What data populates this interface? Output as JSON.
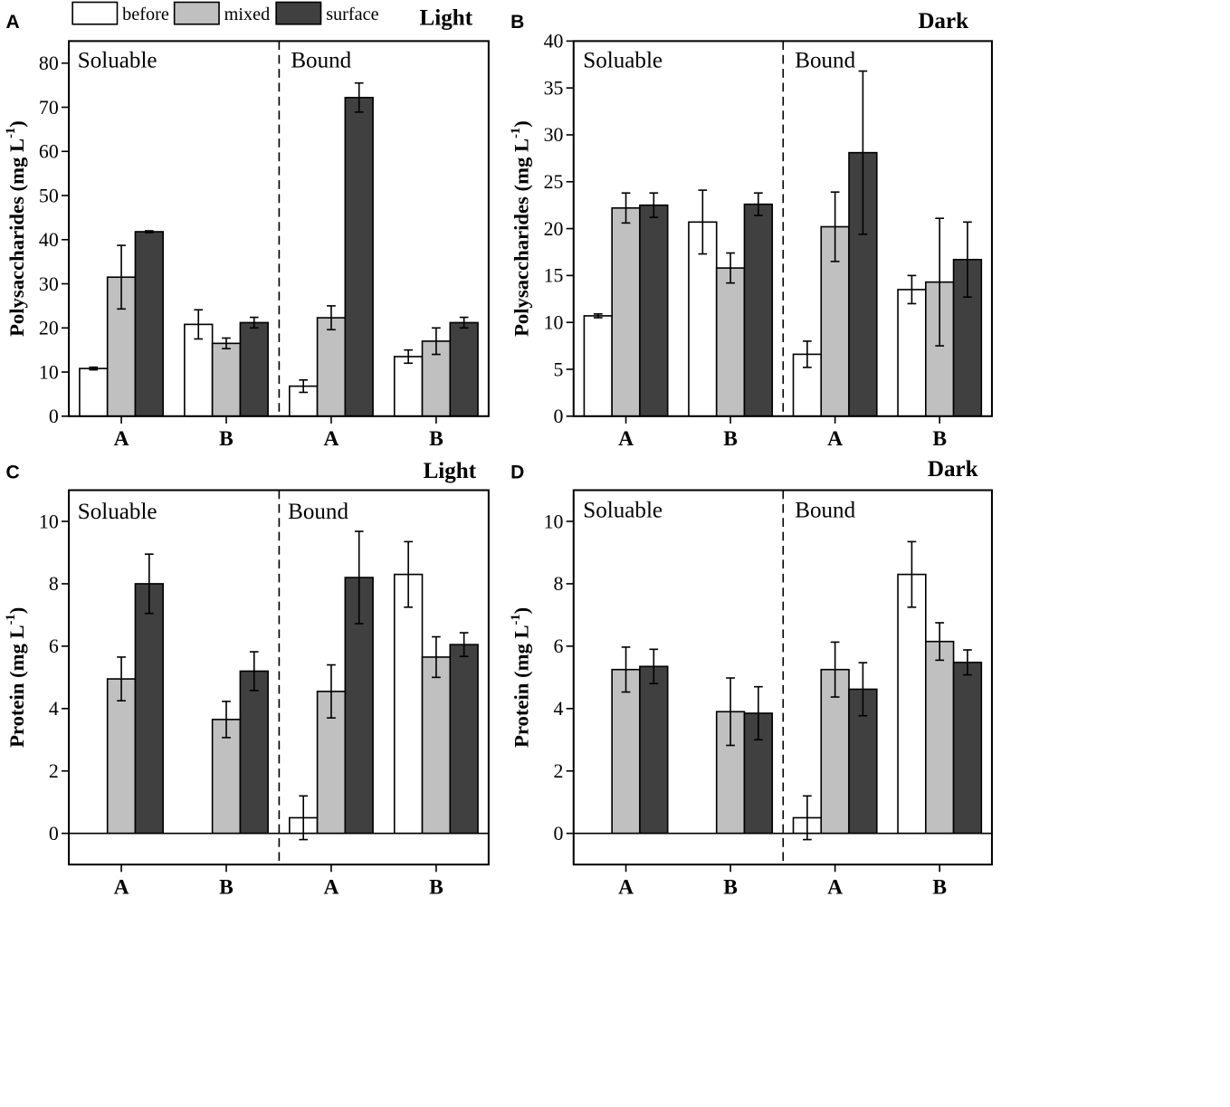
{
  "legend": {
    "items": [
      {
        "label": "before",
        "color": "#ffffff"
      },
      {
        "label": "mixed",
        "color": "#c0c0c0"
      },
      {
        "label": "surface",
        "color": "#404040"
      }
    ]
  },
  "chart_data": [
    {
      "type": "bar",
      "panel": "A",
      "condition": "Light",
      "ylabel": "Polysaccharides (mg L",
      "ylabel_sup": "-1",
      "ylim": [
        0,
        85
      ],
      "yticks": [
        0,
        10,
        20,
        30,
        40,
        50,
        60,
        70,
        80
      ],
      "sections": [
        "Soluable",
        "Bound"
      ],
      "categories": [
        "A",
        "B",
        "A",
        "B"
      ],
      "series": [
        {
          "name": "before",
          "values": [
            10.8,
            20.8,
            6.8,
            13.5
          ],
          "errors": [
            0.3,
            3.3,
            1.4,
            1.5
          ]
        },
        {
          "name": "mixed",
          "values": [
            31.5,
            16.5,
            22.3,
            17.0
          ],
          "errors": [
            7.2,
            1.2,
            2.7,
            3.0
          ]
        },
        {
          "name": "surface",
          "values": [
            41.8,
            21.2,
            72.2,
            21.2
          ],
          "errors": [
            0.2,
            1.2,
            3.3,
            1.2
          ]
        }
      ]
    },
    {
      "type": "bar",
      "panel": "B",
      "condition": "Dark",
      "ylabel": "Polysaccharides (mg L",
      "ylabel_sup": "-1",
      "ylim": [
        0,
        40
      ],
      "yticks": [
        0,
        5,
        10,
        15,
        20,
        25,
        30,
        35,
        40
      ],
      "sections": [
        "Soluable",
        "Bound"
      ],
      "categories": [
        "A",
        "B",
        "A",
        "B"
      ],
      "series": [
        {
          "name": "before",
          "values": [
            10.7,
            20.7,
            6.6,
            13.5
          ],
          "errors": [
            0.2,
            3.4,
            1.4,
            1.5
          ]
        },
        {
          "name": "mixed",
          "values": [
            22.2,
            15.8,
            20.2,
            14.3
          ],
          "errors": [
            1.6,
            1.6,
            3.7,
            6.8
          ]
        },
        {
          "name": "surface",
          "values": [
            22.5,
            22.6,
            28.1,
            16.7
          ],
          "errors": [
            1.3,
            1.2,
            8.7,
            4.0
          ]
        }
      ]
    },
    {
      "type": "bar",
      "panel": "C",
      "condition": "Light",
      "ylabel": "Protein (mg L",
      "ylabel_sup": "-1",
      "ylim": [
        -1,
        11
      ],
      "yticks": [
        0,
        2,
        4,
        6,
        8,
        10
      ],
      "sections": [
        "Soluable",
        "Bound"
      ],
      "categories": [
        "A",
        "B",
        "A",
        "B"
      ],
      "series": [
        {
          "name": "before",
          "values": [
            0,
            0,
            0.5,
            8.3
          ],
          "errors": [
            0,
            0,
            0.7,
            1.05
          ]
        },
        {
          "name": "mixed",
          "values": [
            4.95,
            3.65,
            4.55,
            5.65
          ],
          "errors": [
            0.7,
            0.58,
            0.85,
            0.65
          ]
        },
        {
          "name": "surface",
          "values": [
            8.0,
            5.2,
            8.2,
            6.05
          ],
          "errors": [
            0.95,
            0.62,
            1.48,
            0.38
          ]
        }
      ]
    },
    {
      "type": "bar",
      "panel": "D",
      "condition": "Dark",
      "ylabel": "Protein (mg L",
      "ylabel_sup": "-1",
      "ylim": [
        -1,
        11
      ],
      "yticks": [
        0,
        2,
        4,
        6,
        8,
        10
      ],
      "sections": [
        "Soluable",
        "Bound"
      ],
      "categories": [
        "A",
        "B",
        "A",
        "B"
      ],
      "series": [
        {
          "name": "before",
          "values": [
            0,
            0,
            0.5,
            8.3
          ],
          "errors": [
            0,
            0,
            0.7,
            1.05
          ]
        },
        {
          "name": "mixed",
          "values": [
            5.25,
            3.9,
            5.25,
            6.15
          ],
          "errors": [
            0.72,
            1.08,
            0.88,
            0.6
          ]
        },
        {
          "name": "surface",
          "values": [
            5.35,
            3.85,
            4.62,
            5.48
          ],
          "errors": [
            0.55,
            0.85,
            0.85,
            0.4
          ]
        }
      ]
    }
  ]
}
